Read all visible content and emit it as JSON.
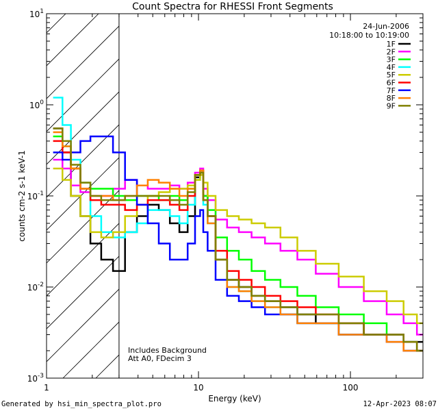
{
  "chart_data": {
    "type": "line",
    "title": "Count Spectra for RHESSI Front Segments",
    "xlabel": "Energy (keV)",
    "ylabel": "counts cm-2 s-1 keV-1",
    "xscale": "log",
    "yscale": "log",
    "xlim": [
      1,
      300
    ],
    "ylim": [
      0.001,
      10
    ],
    "x_ticks": [
      "1",
      "10",
      "100"
    ],
    "y_ticks": [
      "10^0",
      "10^1",
      "10^-1",
      "10^-2",
      "10^-3"
    ],
    "attenuator_cutoff_kev": 3,
    "annotations": {
      "date": "24-Jun-2006",
      "time_range": "10:18:00 to 10:19:00",
      "note1": "Includes Background",
      "note2": "Att A0, FDecim 3"
    },
    "x": [
      1.2,
      1.35,
      1.55,
      1.8,
      2.1,
      2.5,
      3.0,
      3.6,
      4.3,
      5.0,
      6.0,
      7.0,
      8.0,
      9.0,
      10.0,
      10.5,
      11.0,
      12.0,
      14.0,
      17.0,
      20.0,
      25.0,
      30.0,
      40.0,
      50.0,
      70.0,
      100.0,
      150.0,
      200.0,
      250.0,
      300.0
    ],
    "series": [
      {
        "name": "1F",
        "color": "#000000",
        "values": [
          0.55,
          0.3,
          0.1,
          0.06,
          0.03,
          0.02,
          0.015,
          0.04,
          0.06,
          0.08,
          0.07,
          0.05,
          0.04,
          0.06,
          0.16,
          0.18,
          0.1,
          0.06,
          0.02,
          0.012,
          0.01,
          0.008,
          0.007,
          0.006,
          0.005,
          0.004,
          0.004,
          0.003,
          0.003,
          0.0025,
          0.0025
        ]
      },
      {
        "name": "2F",
        "color": "#ff00ff",
        "values": [
          0.25,
          0.2,
          0.13,
          0.11,
          0.1,
          0.1,
          0.12,
          0.15,
          0.13,
          0.12,
          0.12,
          0.13,
          0.12,
          0.14,
          0.18,
          0.2,
          0.12,
          0.09,
          0.055,
          0.045,
          0.04,
          0.035,
          0.03,
          0.025,
          0.02,
          0.014,
          0.01,
          0.007,
          0.005,
          0.004,
          0.003
        ]
      },
      {
        "name": "3F",
        "color": "#00ff00",
        "values": [
          0.45,
          0.35,
          0.2,
          0.14,
          0.12,
          0.12,
          0.1,
          0.09,
          0.1,
          0.1,
          0.09,
          0.1,
          0.09,
          0.12,
          0.17,
          0.19,
          0.1,
          0.07,
          0.035,
          0.025,
          0.02,
          0.015,
          0.012,
          0.01,
          0.008,
          0.006,
          0.005,
          0.004,
          0.003,
          0.0025,
          0.002
        ]
      },
      {
        "name": "4F",
        "color": "#00ffff",
        "values": [
          1.2,
          0.6,
          0.25,
          0.12,
          0.06,
          0.04,
          0.035,
          0.04,
          0.05,
          0.07,
          0.07,
          0.06,
          0.05,
          0.08,
          0.15,
          0.17,
          0.08,
          0.05,
          0.02,
          0.01,
          0.009,
          0.007,
          0.006,
          0.005,
          0.004,
          0.004,
          0.003,
          0.003,
          0.003,
          0.0025,
          0.002
        ]
      },
      {
        "name": "5F",
        "color": "#cccc00",
        "values": [
          0.2,
          0.15,
          0.1,
          0.06,
          0.04,
          0.035,
          0.04,
          0.06,
          0.08,
          0.1,
          0.11,
          0.12,
          0.12,
          0.13,
          0.15,
          0.17,
          0.14,
          0.1,
          0.07,
          0.06,
          0.055,
          0.05,
          0.045,
          0.035,
          0.025,
          0.018,
          0.013,
          0.009,
          0.007,
          0.005,
          0.004
        ]
      },
      {
        "name": "6F",
        "color": "#ff0000",
        "values": [
          0.4,
          0.3,
          0.2,
          0.12,
          0.09,
          0.08,
          0.08,
          0.07,
          0.08,
          0.09,
          0.09,
          0.08,
          0.07,
          0.1,
          0.17,
          0.19,
          0.09,
          0.06,
          0.025,
          0.015,
          0.012,
          0.01,
          0.008,
          0.007,
          0.006,
          0.005,
          0.004,
          0.003,
          0.003,
          0.0025,
          0.002
        ]
      },
      {
        "name": "7F",
        "color": "#0000ff",
        "values": [
          0.3,
          0.25,
          0.3,
          0.4,
          0.45,
          0.45,
          0.3,
          0.15,
          0.08,
          0.05,
          0.03,
          0.02,
          0.02,
          0.03,
          0.06,
          0.07,
          0.04,
          0.025,
          0.012,
          0.008,
          0.007,
          0.006,
          0.005,
          0.005,
          0.004,
          0.004,
          0.003,
          0.003,
          0.0025,
          0.002,
          0.002
        ]
      },
      {
        "name": "8F",
        "color": "#ff8000",
        "values": [
          0.5,
          0.35,
          0.2,
          0.12,
          0.1,
          0.1,
          0.09,
          0.1,
          0.13,
          0.15,
          0.14,
          0.12,
          0.1,
          0.12,
          0.17,
          0.19,
          0.09,
          0.05,
          0.02,
          0.01,
          0.009,
          0.007,
          0.006,
          0.005,
          0.004,
          0.004,
          0.003,
          0.003,
          0.0025,
          0.002,
          0.002
        ]
      },
      {
        "name": "9F",
        "color": "#808000",
        "values": [
          0.55,
          0.4,
          0.22,
          0.14,
          0.1,
          0.09,
          0.09,
          0.1,
          0.1,
          0.1,
          0.1,
          0.09,
          0.08,
          0.11,
          0.17,
          0.18,
          0.09,
          0.06,
          0.02,
          0.012,
          0.01,
          0.008,
          0.007,
          0.006,
          0.005,
          0.005,
          0.004,
          0.003,
          0.003,
          0.0025,
          0.002
        ]
      }
    ]
  },
  "footer": {
    "left": "Generated by hsi_min_spectra_plot.pro",
    "right": "12-Apr-2023 08:07"
  }
}
